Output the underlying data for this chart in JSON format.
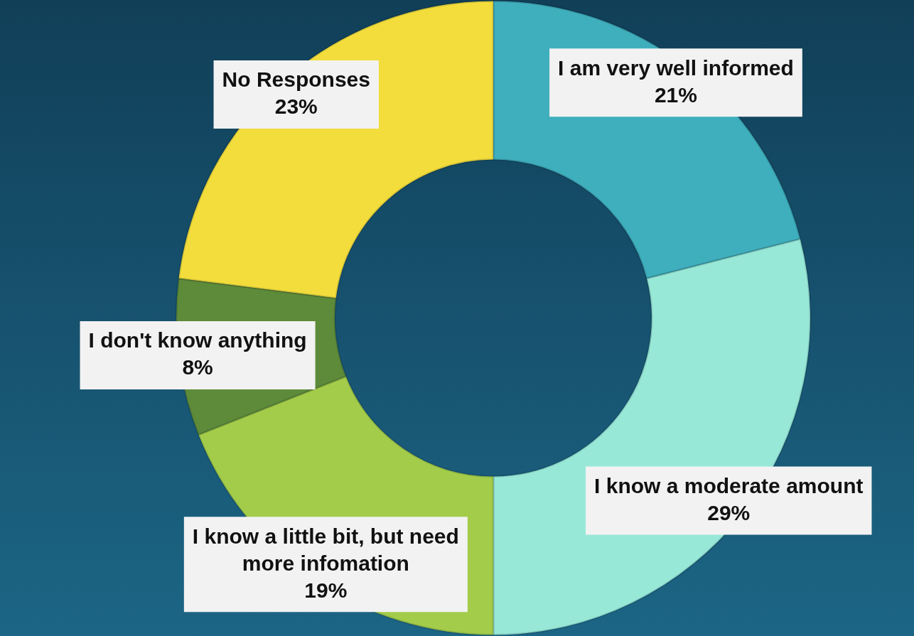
{
  "chart_data": {
    "type": "donut",
    "categories": [
      "I am very well informed",
      "I know a moderate amount",
      "I know a little bit, but need more infomation",
      "I don't know anything",
      "No Responses"
    ],
    "values": [
      21,
      29,
      19,
      8,
      23
    ],
    "colors": [
      "#3fafbd",
      "#98e8d8",
      "#a3cc4a",
      "#5e8b3a",
      "#f2dd3c"
    ],
    "value_labels": [
      "21%",
      "29%",
      "19%",
      "8%",
      "23%"
    ],
    "legend": false
  }
}
